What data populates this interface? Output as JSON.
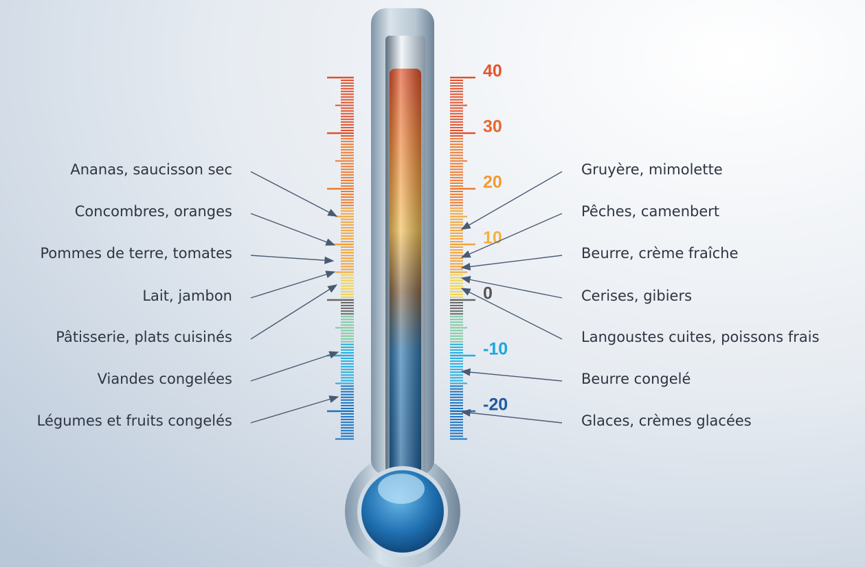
{
  "scale": {
    "labels": [
      "40",
      "30",
      "20",
      "10",
      "0",
      "-10",
      "-20"
    ]
  },
  "left": [
    "Ananas, saucisson sec",
    "Concombres, oranges",
    "Pommes de terre, tomates",
    "Lait, jambon",
    "Pâtisserie, plats cuisinés",
    "Viandes congelées",
    "Légumes et fruits congelés"
  ],
  "right": [
    "Gruyère, mimolette",
    "Pêches, camenbert",
    "Beurre, crème fraîche",
    "Cerises, gibiers",
    "Langoustes cuites, poissons frais",
    "Beurre congelé",
    "Glaces, crèmes glacées"
  ]
}
